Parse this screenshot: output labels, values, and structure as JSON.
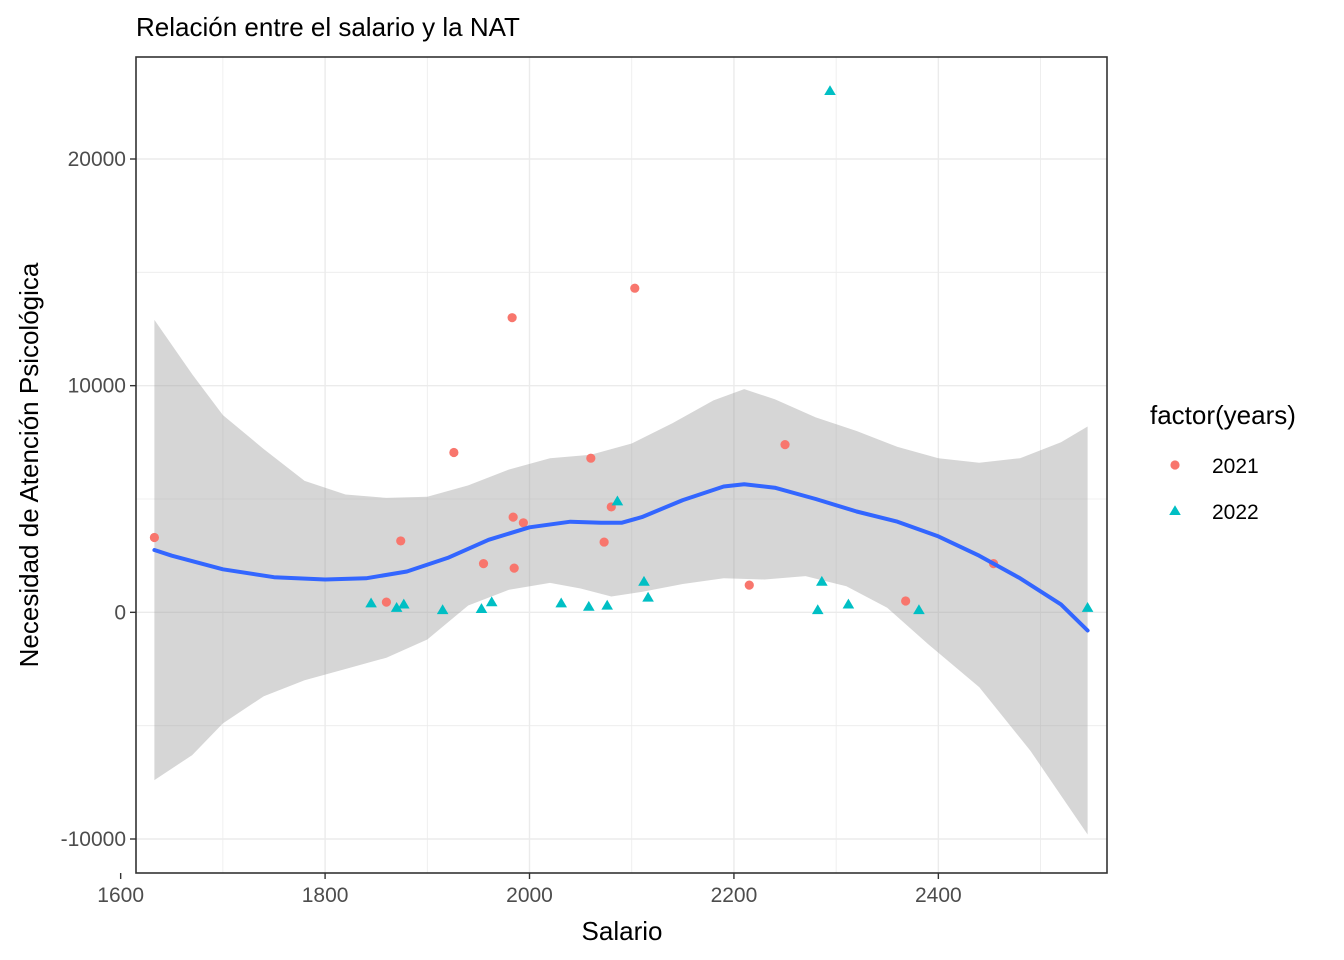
{
  "chart_data": {
    "type": "scatter",
    "title": "Relación entre el salario y la NAT",
    "xlabel": "Salario",
    "ylabel": "Necesidad de Atención Psicológica",
    "xlim": [
      1615,
      2565
    ],
    "ylim": [
      -11500,
      24500
    ],
    "x_ticks": [
      1600,
      1800,
      2000,
      2200,
      2400
    ],
    "y_ticks": [
      -10000,
      0,
      10000,
      20000
    ],
    "x_tick_labels": [
      "1600",
      "1800",
      "2000",
      "2200",
      "2400"
    ],
    "y_tick_labels": [
      "-10000",
      "0",
      "10000",
      "20000"
    ],
    "grid": true,
    "legend": {
      "title": "factor(years)",
      "position": "right",
      "entries": [
        {
          "label": "2021",
          "shape": "circle",
          "color": "#f8766d"
        },
        {
          "label": "2022",
          "shape": "triangle",
          "color": "#00bfc4"
        }
      ]
    },
    "series": [
      {
        "name": "2021",
        "shape": "circle",
        "color": "#f8766d",
        "points": [
          [
            1633,
            3300
          ],
          [
            1860,
            450
          ],
          [
            1874,
            3150
          ],
          [
            1926,
            7050
          ],
          [
            1955,
            2150
          ],
          [
            1983,
            13000
          ],
          [
            1984,
            4200
          ],
          [
            1985,
            1950
          ],
          [
            1994,
            3950
          ],
          [
            2060,
            6800
          ],
          [
            2073,
            3100
          ],
          [
            2080,
            4650
          ],
          [
            2103,
            14300
          ],
          [
            2215,
            1200
          ],
          [
            2250,
            7400
          ],
          [
            2368,
            500
          ],
          [
            2454,
            2150
          ]
        ]
      },
      {
        "name": "2022",
        "shape": "triangle",
        "color": "#00bfc4",
        "points": [
          [
            1845,
            400
          ],
          [
            1870,
            200
          ],
          [
            1877,
            350
          ],
          [
            1915,
            100
          ],
          [
            1953,
            150
          ],
          [
            1963,
            450
          ],
          [
            2031,
            400
          ],
          [
            2058,
            250
          ],
          [
            2076,
            300
          ],
          [
            2086,
            4900
          ],
          [
            2112,
            1350
          ],
          [
            2116,
            650
          ],
          [
            2282,
            100
          ],
          [
            2286,
            1350
          ],
          [
            2294,
            23000
          ],
          [
            2312,
            350
          ],
          [
            2381,
            100
          ],
          [
            2546,
            200
          ]
        ]
      }
    ],
    "smooth": {
      "color": "#3366ff",
      "ribbon_color": "#999999",
      "fit": [
        [
          1633,
          2750
        ],
        [
          1650,
          2500
        ],
        [
          1700,
          1900
        ],
        [
          1750,
          1550
        ],
        [
          1800,
          1450
        ],
        [
          1840,
          1500
        ],
        [
          1880,
          1800
        ],
        [
          1920,
          2400
        ],
        [
          1960,
          3200
        ],
        [
          2000,
          3750
        ],
        [
          2040,
          4000
        ],
        [
          2070,
          3950
        ],
        [
          2090,
          3950
        ],
        [
          2110,
          4200
        ],
        [
          2150,
          4950
        ],
        [
          2190,
          5550
        ],
        [
          2210,
          5650
        ],
        [
          2240,
          5500
        ],
        [
          2280,
          5000
        ],
        [
          2320,
          4450
        ],
        [
          2360,
          4000
        ],
        [
          2400,
          3350
        ],
        [
          2440,
          2500
        ],
        [
          2480,
          1500
        ],
        [
          2520,
          350
        ],
        [
          2546,
          -800
        ]
      ],
      "upper": [
        [
          1633,
          12900
        ],
        [
          1670,
          10500
        ],
        [
          1700,
          8700
        ],
        [
          1740,
          7200
        ],
        [
          1780,
          5800
        ],
        [
          1820,
          5200
        ],
        [
          1860,
          5050
        ],
        [
          1900,
          5100
        ],
        [
          1940,
          5600
        ],
        [
          1980,
          6300
        ],
        [
          2020,
          6800
        ],
        [
          2060,
          6950
        ],
        [
          2100,
          7450
        ],
        [
          2140,
          8350
        ],
        [
          2180,
          9350
        ],
        [
          2210,
          9850
        ],
        [
          2240,
          9400
        ],
        [
          2280,
          8600
        ],
        [
          2320,
          8000
        ],
        [
          2360,
          7300
        ],
        [
          2400,
          6800
        ],
        [
          2440,
          6600
        ],
        [
          2480,
          6800
        ],
        [
          2520,
          7500
        ],
        [
          2546,
          8200
        ]
      ],
      "lower": [
        [
          1633,
          -7400
        ],
        [
          1670,
          -6300
        ],
        [
          1700,
          -4900
        ],
        [
          1740,
          -3700
        ],
        [
          1780,
          -3000
        ],
        [
          1820,
          -2500
        ],
        [
          1860,
          -2000
        ],
        [
          1900,
          -1200
        ],
        [
          1940,
          300
        ],
        [
          1980,
          1000
        ],
        [
          2020,
          1300
        ],
        [
          2050,
          1050
        ],
        [
          2080,
          700
        ],
        [
          2110,
          900
        ],
        [
          2150,
          1250
        ],
        [
          2190,
          1500
        ],
        [
          2230,
          1450
        ],
        [
          2270,
          1600
        ],
        [
          2310,
          1150
        ],
        [
          2350,
          200
        ],
        [
          2390,
          -1400
        ],
        [
          2440,
          -3300
        ],
        [
          2490,
          -6100
        ],
        [
          2546,
          -9800
        ]
      ]
    }
  }
}
